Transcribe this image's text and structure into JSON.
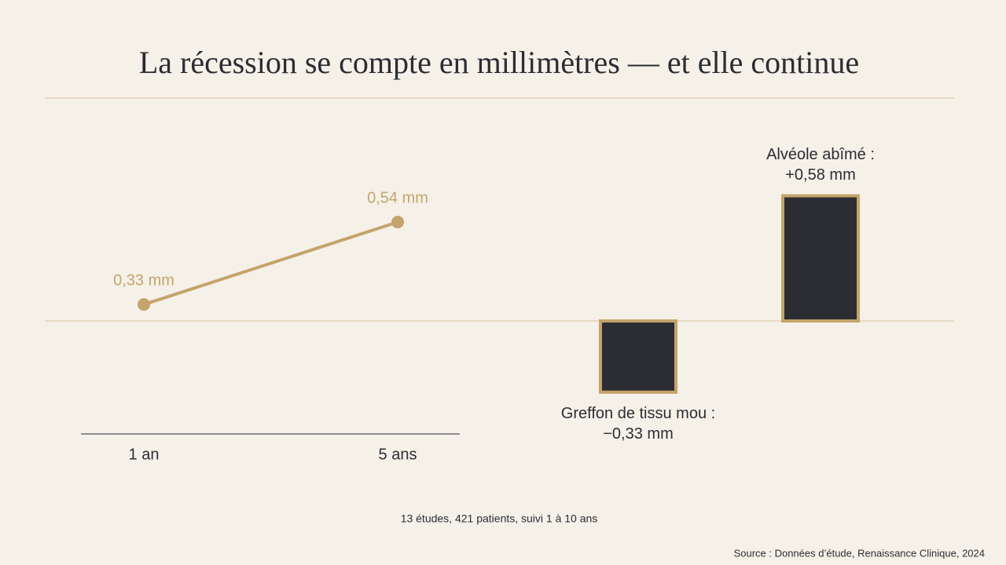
{
  "title": "La récession se compte en millimètres — et elle continue",
  "note": "13 études, 421 patients, suivi 1 à 10 ans",
  "source": "Source : Données d’étude, Renaissance Clinique, 2024",
  "chart_data": [
    {
      "type": "line",
      "categories": [
        "1 an",
        "5 ans"
      ],
      "values": [
        0.33,
        0.54
      ],
      "value_labels": [
        "0,33 mm",
        "0,54 mm"
      ],
      "color": "#c4a46b"
    },
    {
      "type": "bar",
      "categories": [
        "Greffon de tissu mou :",
        "Alvéole abîmé :"
      ],
      "values": [
        -0.33,
        0.58
      ],
      "value_labels": [
        "−0,33 mm",
        "+0,58 mm"
      ],
      "color": "#2b2d33",
      "edge_color": "#c4a46b"
    }
  ]
}
